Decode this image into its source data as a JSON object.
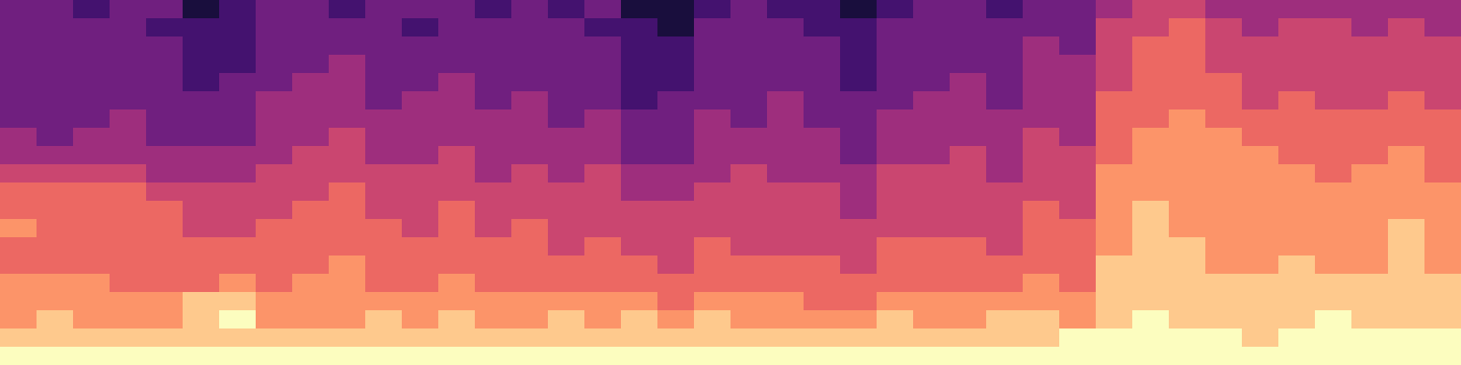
{
  "chart_data": {
    "type": "heatmap",
    "tick_labels": false,
    "crange": [
      0,
      9
    ],
    "cells": [
      [
        3,
        3,
        2,
        3,
        3,
        1,
        2,
        3,
        3,
        2,
        3,
        3,
        3,
        2,
        3,
        2,
        3,
        1,
        1,
        2,
        3,
        2,
        2,
        1,
        2,
        3,
        3,
        2,
        3,
        3,
        4,
        5,
        5,
        4,
        4,
        4,
        4,
        4,
        4,
        4
      ],
      [
        3,
        3,
        3,
        3,
        2,
        2,
        2,
        3,
        3,
        3,
        3,
        2,
        3,
        3,
        3,
        3,
        2,
        2,
        1,
        3,
        3,
        3,
        2,
        2,
        3,
        3,
        3,
        3,
        3,
        3,
        5,
        5,
        6,
        5,
        4,
        5,
        5,
        4,
        5,
        4
      ],
      [
        3,
        3,
        3,
        3,
        3,
        2,
        2,
        3,
        3,
        3,
        3,
        3,
        3,
        3,
        3,
        3,
        3,
        2,
        2,
        3,
        3,
        3,
        3,
        2,
        3,
        3,
        3,
        3,
        4,
        3,
        5,
        6,
        6,
        5,
        5,
        5,
        5,
        5,
        5,
        5
      ],
      [
        3,
        3,
        3,
        3,
        3,
        2,
        2,
        3,
        3,
        4,
        3,
        3,
        3,
        3,
        3,
        3,
        3,
        2,
        2,
        3,
        3,
        3,
        3,
        2,
        3,
        3,
        3,
        3,
        4,
        4,
        5,
        6,
        6,
        5,
        5,
        5,
        5,
        5,
        5,
        5
      ],
      [
        3,
        3,
        3,
        3,
        3,
        2,
        3,
        3,
        4,
        4,
        3,
        3,
        4,
        3,
        3,
        3,
        3,
        2,
        2,
        3,
        3,
        3,
        3,
        2,
        3,
        3,
        4,
        3,
        4,
        4,
        5,
        6,
        6,
        6,
        5,
        5,
        5,
        5,
        5,
        5
      ],
      [
        3,
        3,
        3,
        3,
        3,
        3,
        3,
        4,
        4,
        4,
        3,
        4,
        4,
        3,
        4,
        3,
        3,
        2,
        3,
        3,
        3,
        4,
        3,
        3,
        3,
        4,
        4,
        3,
        4,
        4,
        6,
        6,
        6,
        6,
        5,
        6,
        5,
        5,
        6,
        5
      ],
      [
        3,
        3,
        3,
        4,
        3,
        3,
        3,
        4,
        4,
        4,
        4,
        4,
        4,
        4,
        4,
        3,
        4,
        3,
        3,
        4,
        3,
        4,
        3,
        3,
        4,
        4,
        4,
        4,
        4,
        4,
        6,
        6,
        7,
        6,
        6,
        6,
        6,
        6,
        6,
        6
      ],
      [
        4,
        3,
        4,
        4,
        3,
        3,
        3,
        4,
        4,
        5,
        4,
        4,
        4,
        4,
        4,
        4,
        4,
        3,
        3,
        4,
        4,
        4,
        4,
        3,
        4,
        4,
        4,
        4,
        5,
        4,
        6,
        7,
        7,
        7,
        6,
        6,
        6,
        6,
        6,
        6
      ],
      [
        4,
        4,
        4,
        4,
        4,
        4,
        4,
        4,
        5,
        5,
        4,
        4,
        5,
        4,
        4,
        4,
        4,
        3,
        3,
        4,
        4,
        4,
        4,
        3,
        4,
        4,
        5,
        4,
        5,
        5,
        6,
        7,
        7,
        7,
        7,
        6,
        6,
        6,
        7,
        6
      ],
      [
        5,
        5,
        5,
        5,
        4,
        4,
        4,
        5,
        5,
        5,
        5,
        5,
        5,
        4,
        5,
        4,
        5,
        4,
        4,
        4,
        5,
        4,
        4,
        4,
        5,
        5,
        5,
        4,
        5,
        5,
        7,
        7,
        7,
        7,
        7,
        7,
        6,
        7,
        7,
        6
      ],
      [
        6,
        6,
        6,
        6,
        5,
        5,
        5,
        5,
        5,
        6,
        5,
        5,
        5,
        5,
        5,
        5,
        5,
        4,
        4,
        5,
        5,
        5,
        5,
        4,
        5,
        5,
        5,
        5,
        5,
        5,
        7,
        7,
        7,
        7,
        7,
        7,
        7,
        7,
        7,
        7
      ],
      [
        6,
        6,
        6,
        6,
        6,
        5,
        5,
        5,
        6,
        6,
        5,
        5,
        6,
        5,
        5,
        5,
        5,
        5,
        5,
        5,
        5,
        5,
        5,
        4,
        5,
        5,
        5,
        5,
        6,
        5,
        7,
        8,
        7,
        7,
        7,
        7,
        7,
        7,
        7,
        7
      ],
      [
        7,
        6,
        6,
        6,
        6,
        5,
        5,
        6,
        6,
        6,
        6,
        5,
        6,
        5,
        6,
        5,
        5,
        5,
        5,
        5,
        5,
        5,
        5,
        5,
        5,
        5,
        5,
        5,
        6,
        6,
        7,
        8,
        7,
        7,
        7,
        7,
        7,
        7,
        8,
        7
      ],
      [
        6,
        6,
        6,
        6,
        6,
        6,
        6,
        6,
        6,
        6,
        6,
        6,
        6,
        6,
        6,
        5,
        6,
        5,
        5,
        6,
        5,
        5,
        5,
        5,
        6,
        6,
        6,
        5,
        6,
        6,
        7,
        8,
        8,
        7,
        7,
        7,
        7,
        7,
        8,
        7
      ],
      [
        6,
        6,
        6,
        6,
        6,
        6,
        6,
        6,
        6,
        7,
        6,
        6,
        6,
        6,
        6,
        6,
        6,
        6,
        5,
        6,
        6,
        6,
        6,
        5,
        6,
        6,
        6,
        6,
        6,
        6,
        8,
        8,
        8,
        7,
        7,
        8,
        7,
        7,
        8,
        7
      ],
      [
        7,
        7,
        7,
        6,
        6,
        6,
        7,
        6,
        7,
        7,
        6,
        6,
        7,
        6,
        6,
        6,
        6,
        6,
        6,
        6,
        6,
        6,
        6,
        6,
        6,
        6,
        6,
        6,
        7,
        6,
        8,
        8,
        8,
        8,
        8,
        8,
        8,
        8,
        8,
        8
      ],
      [
        7,
        7,
        7,
        7,
        7,
        8,
        8,
        7,
        7,
        7,
        7,
        7,
        7,
        7,
        7,
        7,
        7,
        7,
        6,
        7,
        7,
        7,
        6,
        6,
        7,
        7,
        7,
        7,
        7,
        7,
        8,
        8,
        8,
        8,
        8,
        8,
        8,
        8,
        8,
        8
      ],
      [
        7,
        8,
        7,
        7,
        7,
        8,
        9,
        7,
        7,
        7,
        8,
        7,
        8,
        7,
        7,
        8,
        7,
        8,
        7,
        8,
        7,
        7,
        7,
        7,
        8,
        7,
        7,
        8,
        8,
        7,
        8,
        9,
        8,
        8,
        8,
        8,
        9,
        8,
        8,
        8
      ],
      [
        8,
        8,
        8,
        8,
        8,
        8,
        8,
        8,
        8,
        8,
        8,
        8,
        8,
        8,
        8,
        8,
        8,
        8,
        8,
        8,
        8,
        8,
        8,
        8,
        8,
        8,
        8,
        8,
        8,
        9,
        9,
        9,
        9,
        9,
        8,
        9,
        9,
        9,
        9,
        9
      ],
      [
        9,
        9,
        9,
        9,
        9,
        9,
        9,
        9,
        9,
        9,
        9,
        9,
        9,
        9,
        9,
        9,
        9,
        9,
        9,
        9,
        9,
        9,
        9,
        9,
        9,
        9,
        9,
        9,
        9,
        9,
        9,
        9,
        9,
        9,
        9,
        9,
        9,
        9,
        9,
        9
      ]
    ]
  }
}
